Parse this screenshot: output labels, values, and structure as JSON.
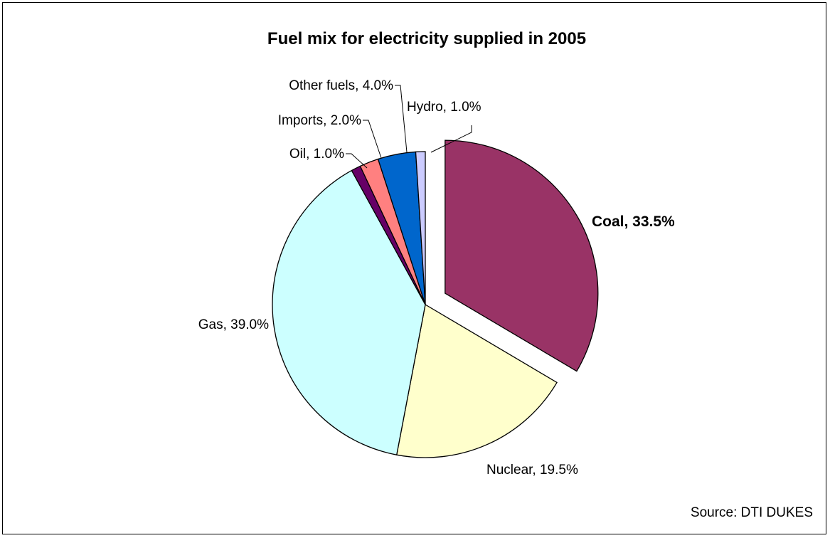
{
  "chart_data": {
    "type": "pie",
    "title": "Fuel mix for electricity supplied in 2005",
    "source": "Source: DTI DUKES",
    "unit": "%",
    "slices": [
      {
        "name": "Coal",
        "value": 33.5,
        "label": "Coal, 33.5%",
        "color": "#993366",
        "exploded": true,
        "bold": true
      },
      {
        "name": "Nuclear",
        "value": 19.5,
        "label": "Nuclear, 19.5%",
        "color": "#FFFFCC"
      },
      {
        "name": "Gas",
        "value": 39.0,
        "label": "Gas, 39.0%",
        "color": "#CCFFFF"
      },
      {
        "name": "Oil",
        "value": 1.0,
        "label": "Oil, 1.0%",
        "color": "#660066"
      },
      {
        "name": "Imports",
        "value": 2.0,
        "label": "Imports, 2.0%",
        "color": "#FF8080"
      },
      {
        "name": "Other fuels",
        "value": 4.0,
        "label": "Other fuels, 4.0%",
        "color": "#0066CC"
      },
      {
        "name": "Hydro",
        "value": 1.0,
        "label": "Hydro, 1.0%",
        "color": "#CCCCFF"
      }
    ]
  }
}
